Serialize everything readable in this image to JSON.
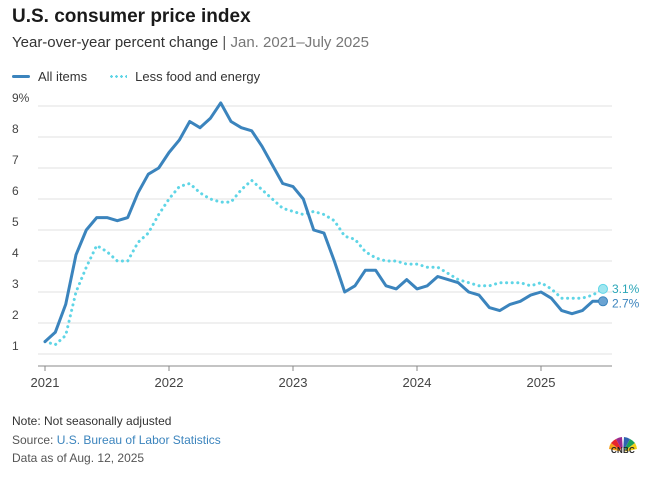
{
  "title": "U.S. consumer price index",
  "subtitle_main": "Year-over-year percent change",
  "subtitle_sep": "|",
  "subtitle_range": "Jan. 2021–July 2025",
  "legend": [
    {
      "label": "All items"
    },
    {
      "label": "Less food and energy"
    }
  ],
  "colors": {
    "all_items": "#3b84bd",
    "core": "#5fd5e6",
    "grid": "#e2e2e2",
    "axis": "#888888"
  },
  "chart_data": {
    "type": "line",
    "x_unit": "months since Jan. 2021",
    "ylim": [
      1,
      9
    ],
    "y_ticks": [
      1,
      2,
      3,
      4,
      5,
      6,
      7,
      8,
      9
    ],
    "y_tick_labels": [
      "1",
      "2",
      "3",
      "4",
      "5",
      "6",
      "7",
      "8",
      "9%"
    ],
    "x_ticks": [
      "2021",
      "2022",
      "2023",
      "2024",
      "2025"
    ],
    "grid": true,
    "legend_position": "top-left",
    "series": [
      {
        "name": "All items",
        "style": "solid",
        "end_label": "2.7%",
        "values": [
          1.4,
          1.7,
          2.6,
          4.2,
          5.0,
          5.4,
          5.4,
          5.3,
          5.4,
          6.2,
          6.8,
          7.0,
          7.5,
          7.9,
          8.5,
          8.3,
          8.6,
          9.1,
          8.5,
          8.3,
          8.2,
          7.7,
          7.1,
          6.5,
          6.4,
          6.0,
          5.0,
          4.9,
          4.0,
          3.0,
          3.2,
          3.7,
          3.7,
          3.2,
          3.1,
          3.4,
          3.1,
          3.2,
          3.5,
          3.4,
          3.3,
          3.0,
          2.9,
          2.5,
          2.4,
          2.6,
          2.7,
          2.9,
          3.0,
          2.8,
          2.4,
          2.3,
          2.4,
          2.7,
          2.7
        ]
      },
      {
        "name": "Less food and energy",
        "style": "dotted",
        "end_label": "3.1%",
        "values": [
          1.4,
          1.3,
          1.6,
          3.0,
          3.8,
          4.5,
          4.3,
          4.0,
          4.0,
          4.6,
          4.9,
          5.5,
          6.0,
          6.4,
          6.5,
          6.2,
          6.0,
          5.9,
          5.9,
          6.3,
          6.6,
          6.3,
          6.0,
          5.7,
          5.6,
          5.5,
          5.6,
          5.5,
          5.3,
          4.8,
          4.7,
          4.3,
          4.1,
          4.0,
          4.0,
          3.9,
          3.9,
          3.8,
          3.8,
          3.6,
          3.4,
          3.3,
          3.2,
          3.2,
          3.3,
          3.3,
          3.3,
          3.2,
          3.3,
          3.1,
          2.8,
          2.8,
          2.8,
          2.9,
          3.1
        ]
      }
    ]
  },
  "footer": {
    "note": "Note: Not seasonally adjusted",
    "source_prefix": "Source: ",
    "source_link": "U.S. Bureau of Labor Statistics",
    "asof": "Data as of Aug. 12, 2025"
  },
  "logo": {
    "text": "CNBC"
  }
}
